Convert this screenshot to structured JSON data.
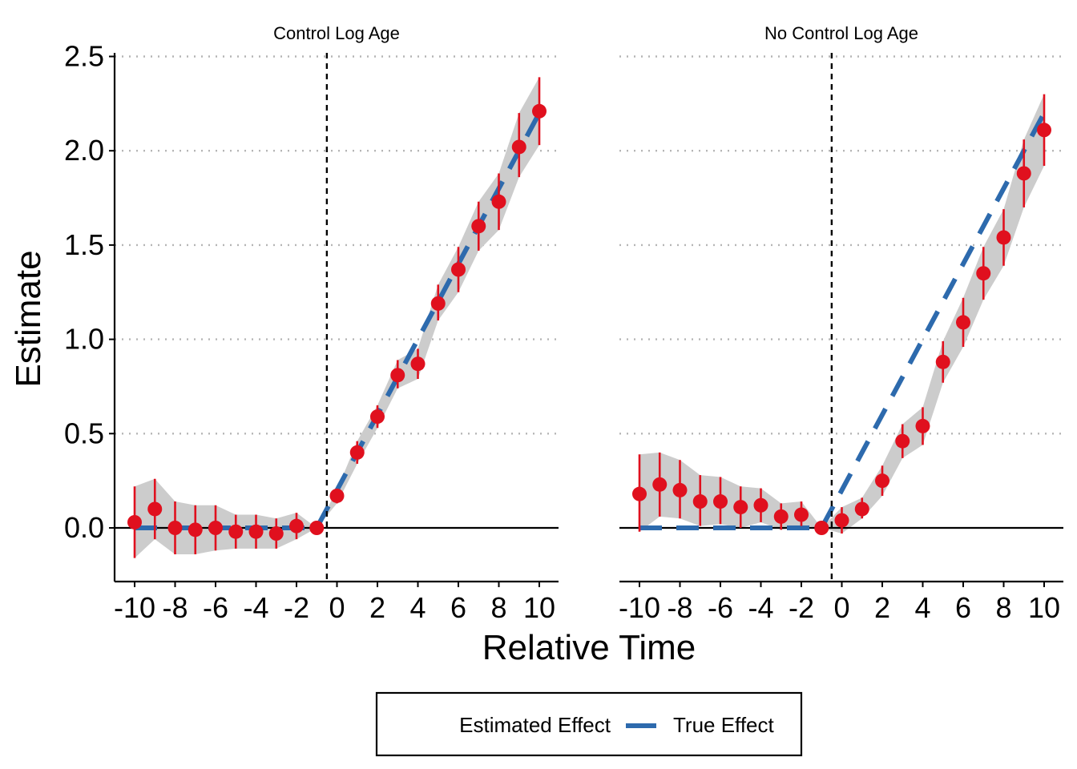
{
  "chart_data": {
    "type": "line",
    "ylabel": "Estimate",
    "xlabel": "Relative Time",
    "ylim": [
      -0.28,
      2.52
    ],
    "xlim": [
      -11,
      11
    ],
    "y_ticks": [
      0.0,
      0.5,
      1.0,
      1.5,
      2.0,
      2.5
    ],
    "y_tick_labels": [
      "0.0",
      "0.5",
      "1.0",
      "1.5",
      "2.0",
      "2.5"
    ],
    "x_ticks": [
      -10,
      -8,
      -6,
      -4,
      -2,
      0,
      2,
      4,
      6,
      8,
      10
    ],
    "x_tick_labels": [
      "-10",
      "-8",
      "-6",
      "-4",
      "-2",
      "0",
      "2",
      "4",
      "6",
      "8",
      "10"
    ],
    "grid": "horizontal dotted",
    "reference_lines": {
      "horizontal_y": 0,
      "vertical_x": -0.5
    },
    "legend": {
      "placement": "bottom",
      "entries": [
        {
          "name": "Estimated Effect",
          "color": "#e0101e"
        },
        {
          "name": "True Effect",
          "color": "#2d6aad"
        }
      ]
    },
    "colors": {
      "estimate": "#e0101e",
      "true_effect": "#2d6aad",
      "ribbon": "#cccccc",
      "grid": "#b5b5b5"
    },
    "panels": [
      {
        "title": "Control Log Age",
        "x": [
          -10,
          -9,
          -8,
          -7,
          -6,
          -5,
          -4,
          -3,
          -2,
          -1,
          0,
          1,
          2,
          3,
          4,
          5,
          6,
          7,
          8,
          9,
          10
        ],
        "estimate": [
          0.03,
          0.1,
          0.0,
          -0.01,
          0.0,
          -0.02,
          -0.02,
          -0.03,
          0.01,
          0.0,
          0.17,
          0.4,
          0.59,
          0.81,
          0.87,
          1.19,
          1.37,
          1.6,
          1.73,
          2.02,
          2.21
        ],
        "ci_low": [
          -0.16,
          -0.06,
          -0.14,
          -0.14,
          -0.12,
          -0.11,
          -0.11,
          -0.11,
          -0.06,
          0.0,
          0.13,
          0.34,
          0.53,
          0.74,
          0.79,
          1.1,
          1.25,
          1.47,
          1.58,
          1.86,
          2.03
        ],
        "ci_high": [
          0.22,
          0.26,
          0.14,
          0.12,
          0.12,
          0.07,
          0.07,
          0.05,
          0.08,
          0.0,
          0.2,
          0.46,
          0.65,
          0.89,
          0.95,
          1.29,
          1.49,
          1.73,
          1.88,
          2.2,
          2.39
        ],
        "true_effect": [
          0,
          0,
          0,
          0,
          0,
          0,
          0,
          0,
          0,
          0,
          0.2,
          0.4,
          0.6,
          0.8,
          1.0,
          1.2,
          1.4,
          1.6,
          1.8,
          2.0,
          2.2
        ]
      },
      {
        "title": "No Control Log Age",
        "x": [
          -10,
          -9,
          -8,
          -7,
          -6,
          -5,
          -4,
          -3,
          -2,
          -1,
          0,
          1,
          2,
          3,
          4,
          5,
          6,
          7,
          8,
          9,
          10
        ],
        "estimate": [
          0.18,
          0.23,
          0.2,
          0.14,
          0.14,
          0.11,
          0.12,
          0.06,
          0.07,
          0.0,
          0.04,
          0.1,
          0.25,
          0.46,
          0.54,
          0.88,
          1.09,
          1.35,
          1.54,
          1.88,
          2.11
        ],
        "ci_low": [
          -0.02,
          0.06,
          0.05,
          0.01,
          0.02,
          0.0,
          0.03,
          -0.01,
          0.01,
          0.0,
          -0.03,
          0.05,
          0.17,
          0.37,
          0.44,
          0.77,
          0.96,
          1.21,
          1.39,
          1.7,
          1.92
        ],
        "ci_high": [
          0.39,
          0.4,
          0.36,
          0.28,
          0.27,
          0.22,
          0.21,
          0.13,
          0.14,
          0.0,
          0.11,
          0.16,
          0.33,
          0.55,
          0.64,
          0.99,
          1.22,
          1.49,
          1.69,
          2.06,
          2.3
        ],
        "true_effect": [
          0,
          0,
          0,
          0,
          0,
          0,
          0,
          0,
          0,
          0,
          0.2,
          0.4,
          0.6,
          0.8,
          1.0,
          1.2,
          1.4,
          1.6,
          1.8,
          2.0,
          2.2
        ]
      }
    ]
  }
}
